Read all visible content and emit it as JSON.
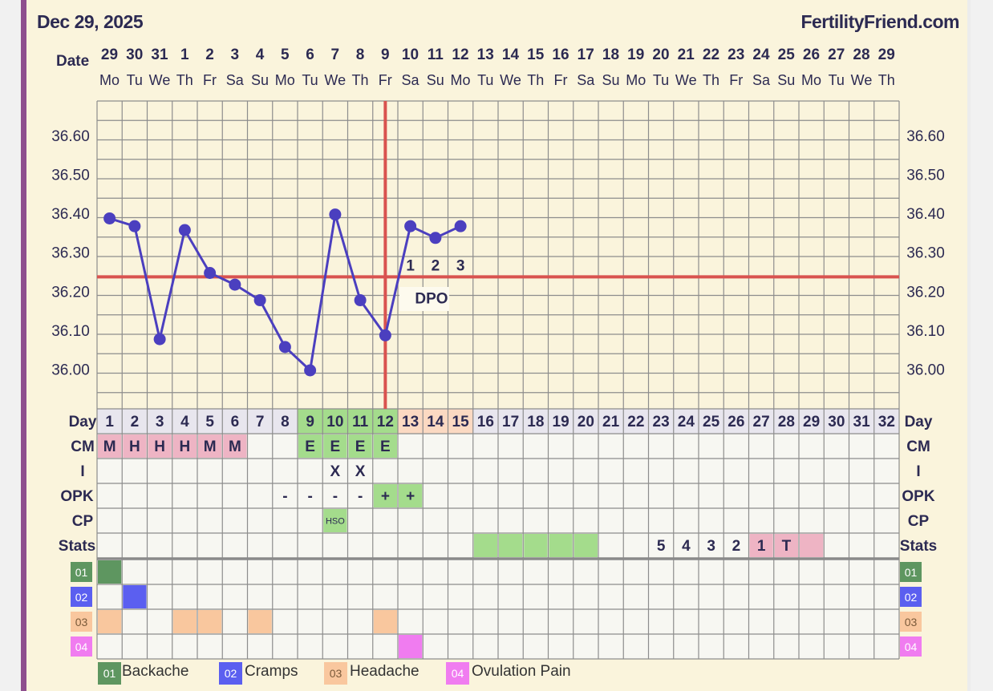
{
  "header": {
    "date": "Dec 29, 2025",
    "brand": "FertilityFriend.com",
    "date_label": "Date"
  },
  "colors": {
    "line": "#4b3fbf",
    "coverline": "#d9534f",
    "grid": "#8d8d8d",
    "green": "#a4dc8c",
    "pink": "#eeb4c4",
    "peach": "#fbd9c2",
    "day_bg": "#e8e6ee"
  },
  "calendar": [
    {
      "d": "29",
      "w": "Mo"
    },
    {
      "d": "30",
      "w": "Tu"
    },
    {
      "d": "31",
      "w": "We"
    },
    {
      "d": "1",
      "w": "Th"
    },
    {
      "d": "2",
      "w": "Fr"
    },
    {
      "d": "3",
      "w": "Sa"
    },
    {
      "d": "4",
      "w": "Su"
    },
    {
      "d": "5",
      "w": "Mo"
    },
    {
      "d": "6",
      "w": "Tu"
    },
    {
      "d": "7",
      "w": "We"
    },
    {
      "d": "8",
      "w": "Th"
    },
    {
      "d": "9",
      "w": "Fr"
    },
    {
      "d": "10",
      "w": "Sa"
    },
    {
      "d": "11",
      "w": "Su"
    },
    {
      "d": "12",
      "w": "Mo"
    },
    {
      "d": "13",
      "w": "Tu"
    },
    {
      "d": "14",
      "w": "We"
    },
    {
      "d": "15",
      "w": "Th"
    },
    {
      "d": "16",
      "w": "Fr"
    },
    {
      "d": "17",
      "w": "Sa"
    },
    {
      "d": "18",
      "w": "Su"
    },
    {
      "d": "19",
      "w": "Mo"
    },
    {
      "d": "20",
      "w": "Tu"
    },
    {
      "d": "21",
      "w": "We"
    },
    {
      "d": "22",
      "w": "Th"
    },
    {
      "d": "23",
      "w": "Fr"
    },
    {
      "d": "24",
      "w": "Sa"
    },
    {
      "d": "25",
      "w": "Su"
    },
    {
      "d": "26",
      "w": "Mo"
    },
    {
      "d": "27",
      "w": "Tu"
    },
    {
      "d": "28",
      "w": "We"
    },
    {
      "d": "29",
      "w": "Th"
    }
  ],
  "chart_data": {
    "type": "line",
    "x": [
      1,
      2,
      3,
      4,
      5,
      6,
      7,
      8,
      9,
      10,
      11,
      12,
      13,
      14,
      15
    ],
    "y": [
      36.39,
      36.37,
      36.08,
      36.36,
      36.25,
      36.22,
      36.18,
      36.06,
      36.0,
      36.4,
      36.18,
      36.09,
      36.37,
      36.34,
      36.37
    ],
    "y_ticks": [
      "36.00",
      "36.10",
      "36.20",
      "36.30",
      "36.40",
      "36.50",
      "36.60"
    ],
    "ylim": [
      35.9,
      36.7
    ],
    "coverline": 36.24,
    "ovulation_day": 12,
    "dpo": {
      "days": [
        13,
        14,
        15
      ],
      "labels": [
        "1",
        "2",
        "3"
      ],
      "text": "DPO"
    },
    "grid": true
  },
  "rows": {
    "labels": [
      "Day",
      "CM",
      "I",
      "OPK",
      "CP",
      "Stats"
    ],
    "day_numbers": [
      "1",
      "2",
      "3",
      "4",
      "5",
      "6",
      "7",
      "8",
      "9",
      "10",
      "11",
      "12",
      "13",
      "14",
      "15",
      "16",
      "17",
      "18",
      "19",
      "20",
      "21",
      "22",
      "23",
      "24",
      "25",
      "26",
      "27",
      "28",
      "29",
      "30",
      "31",
      "32"
    ],
    "cm": [
      {
        "day": 1,
        "v": "M"
      },
      {
        "day": 2,
        "v": "H"
      },
      {
        "day": 3,
        "v": "H"
      },
      {
        "day": 4,
        "v": "H"
      },
      {
        "day": 5,
        "v": "M"
      },
      {
        "day": 6,
        "v": "M"
      },
      {
        "day": 9,
        "v": "E"
      },
      {
        "day": 10,
        "v": "E"
      },
      {
        "day": 11,
        "v": "E"
      },
      {
        "day": 12,
        "v": "E"
      }
    ],
    "intercourse": [
      {
        "day": 10,
        "v": "X"
      },
      {
        "day": 11,
        "v": "X"
      }
    ],
    "opk": [
      {
        "day": 8,
        "v": "-"
      },
      {
        "day": 9,
        "v": "-"
      },
      {
        "day": 10,
        "v": "-"
      },
      {
        "day": 11,
        "v": "-"
      },
      {
        "day": 12,
        "v": "+"
      },
      {
        "day": 13,
        "v": "+"
      }
    ],
    "cp": [
      {
        "day": 10,
        "v": "HSO"
      }
    ],
    "stats": [
      {
        "day": 16,
        "v": ""
      },
      {
        "day": 17,
        "v": ""
      },
      {
        "day": 18,
        "v": ""
      },
      {
        "day": 19,
        "v": ""
      },
      {
        "day": 20,
        "v": ""
      },
      {
        "day": 23,
        "v": "5"
      },
      {
        "day": 24,
        "v": "4"
      },
      {
        "day": 25,
        "v": "3"
      },
      {
        "day": 26,
        "v": "2"
      },
      {
        "day": 27,
        "v": "1"
      },
      {
        "day": 28,
        "v": "T"
      },
      {
        "day": 29,
        "v": ""
      }
    ]
  },
  "symptoms": [
    {
      "code": "01",
      "name": "Backache",
      "color": "#5e9660",
      "days": [
        1
      ]
    },
    {
      "code": "02",
      "name": "Cramps",
      "color": "#5b5ff0",
      "days": [
        2
      ]
    },
    {
      "code": "03",
      "name": "Headache",
      "color": "#f9c79e",
      "days": [
        1,
        4,
        5,
        7,
        12
      ]
    },
    {
      "code": "04",
      "name": "Ovulation Pain",
      "color": "#f07cf0",
      "days": [
        13
      ]
    }
  ]
}
